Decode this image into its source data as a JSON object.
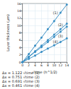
{
  "chart_data": {
    "type": "line",
    "x_label": "√time (h^1/2)",
    "y_label": "Layer thickness (µm)",
    "x": [
      0,
      2,
      4,
      6,
      8,
      10,
      12,
      14
    ],
    "xlim": [
      0,
      14
    ],
    "xticks": [
      0,
      2,
      4,
      6,
      8,
      10,
      12,
      14
    ],
    "ylim": [
      0,
      16
    ],
    "yticks": [
      0,
      2,
      4,
      6,
      8,
      10,
      12,
      14,
      16
    ],
    "grid": true,
    "marker": "circle",
    "series": [
      {
        "name": "(1)",
        "color": "#3a8fc4",
        "values": [
          0,
          2.2,
          4.5,
          6.7,
          9.0,
          11.2,
          13.5,
          15.7
        ]
      },
      {
        "name": "(2)",
        "color": "#3a8fc4",
        "values": [
          0,
          1.5,
          3.0,
          4.5,
          6.0,
          7.5,
          9.0,
          10.5
        ]
      },
      {
        "name": "(3)",
        "color": "#3a8fc4",
        "values": [
          0,
          1.4,
          2.8,
          4.1,
          5.5,
          6.9,
          8.3,
          9.7
        ]
      },
      {
        "name": "(4)",
        "color": "#3a8fc4",
        "values": [
          0,
          0.9,
          1.8,
          2.8,
          3.7,
          4.6,
          5.5,
          6.5
        ]
      }
    ],
    "annotations": [
      "Δx = 1.122 √time (1)",
      "Δx = 0.751 √time (2)",
      "Δx = 0.691 √time (3)",
      "Δx = 0.461 √time (4)"
    ]
  }
}
